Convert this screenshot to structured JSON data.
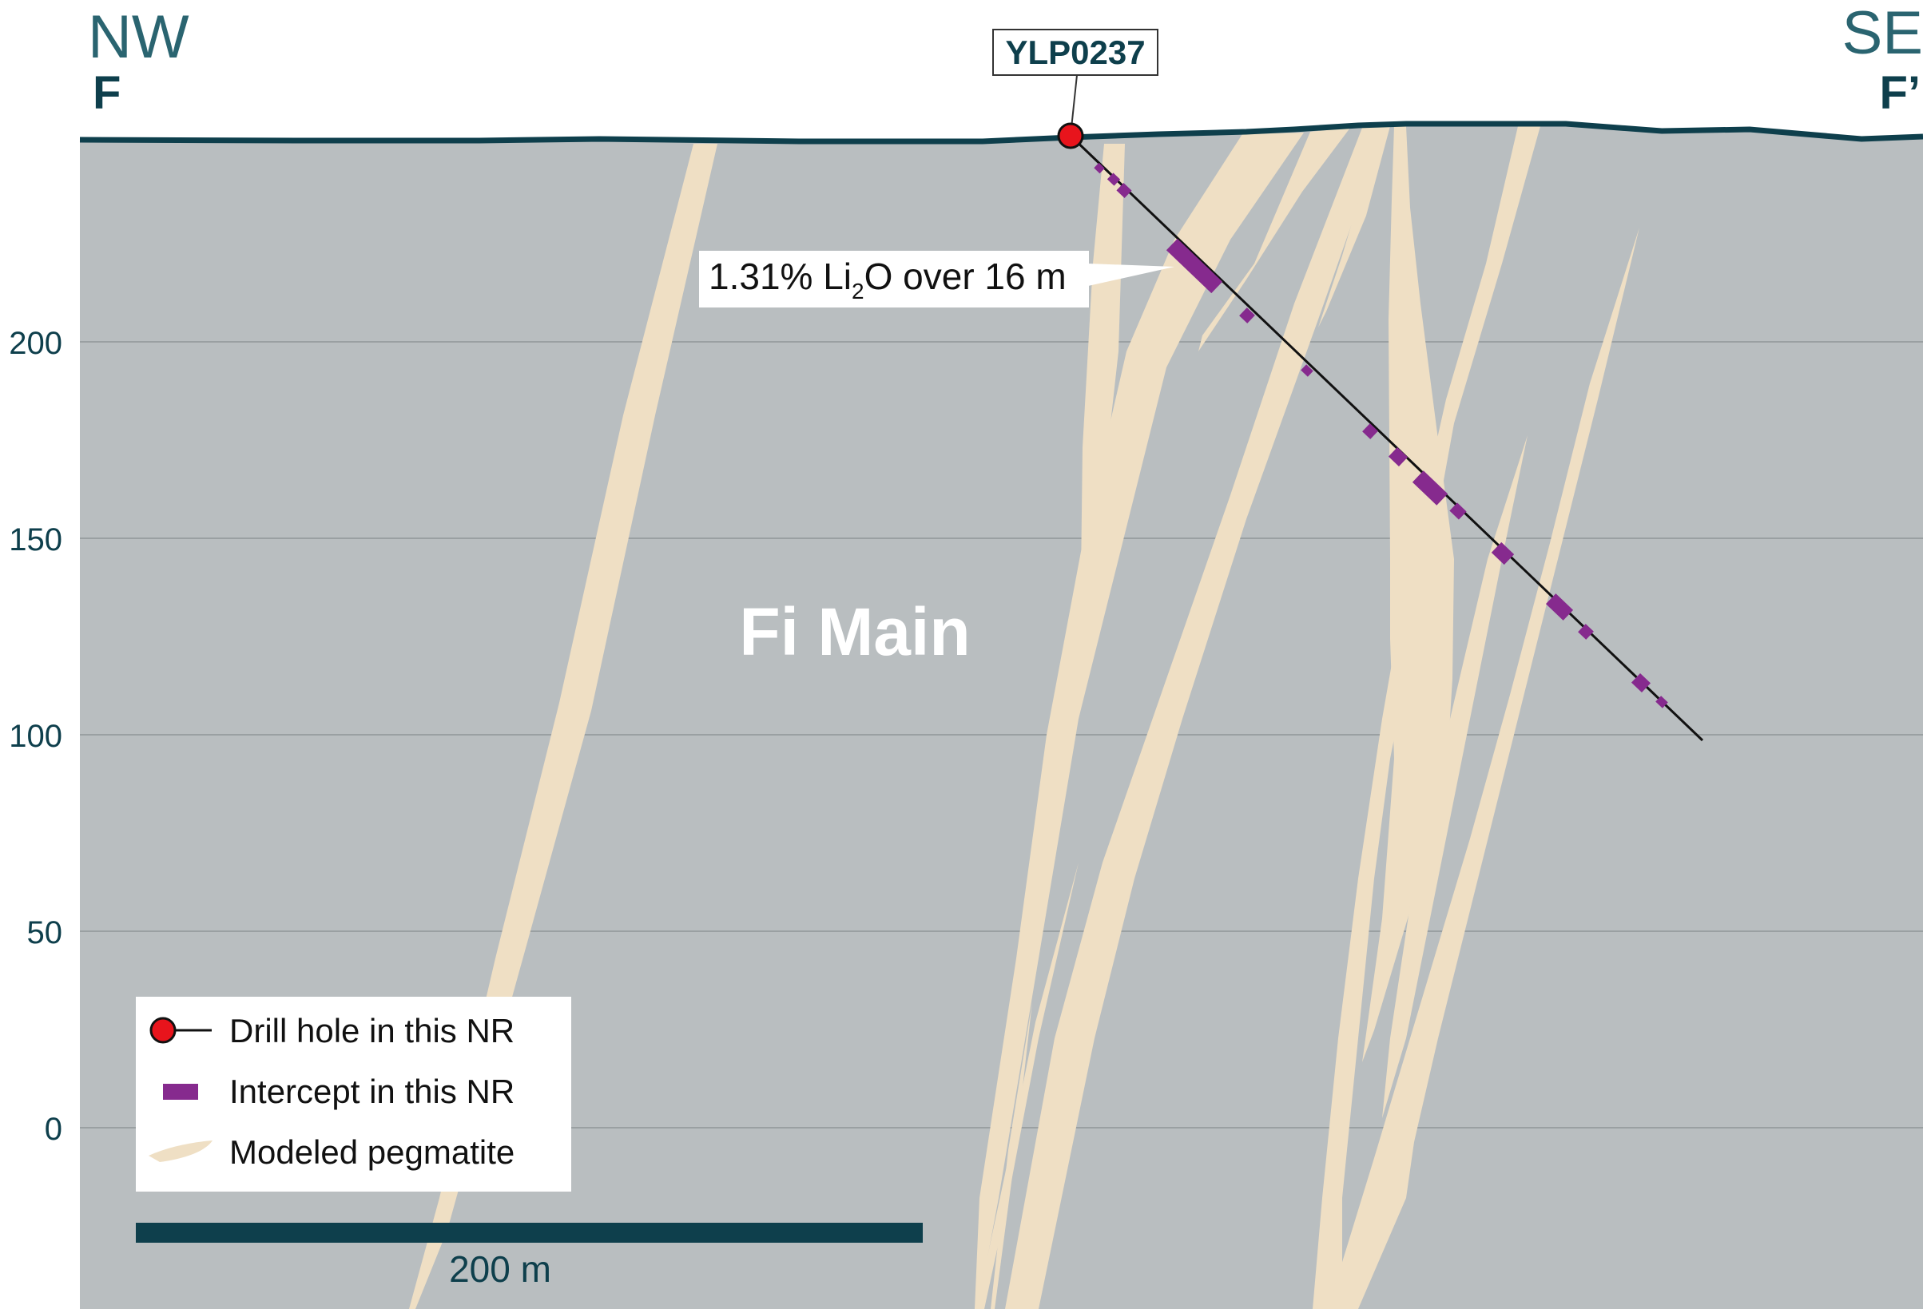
{
  "section": {
    "left_direction": "NW",
    "left_letter": "F",
    "right_direction": "SE",
    "right_letter": "F’",
    "unit_label": "Fi Main"
  },
  "elevation_axis": {
    "ticks": [
      "200",
      "150",
      "100",
      "50",
      "0"
    ]
  },
  "drill_hole": {
    "id": "YLP0237"
  },
  "callout": {
    "prefix": "1.31% Li",
    "subscript": "2",
    "suffix": "O over 16 m"
  },
  "legend": {
    "items": [
      {
        "label": "Drill hole in this NR",
        "symbol": "drill-hole"
      },
      {
        "label": "Intercept in this NR",
        "symbol": "intercept"
      },
      {
        "label": "Modeled pegmatite",
        "symbol": "pegmatite"
      }
    ]
  },
  "scale_bar": {
    "label": "200 m"
  },
  "colors": {
    "background_rock": "#b9bec0",
    "pegmatite": "#efdfc4",
    "intercept": "#862a8e",
    "collar": "#e8141c",
    "topography": "#0e3f4c",
    "gridline": "#9aa0a2"
  }
}
